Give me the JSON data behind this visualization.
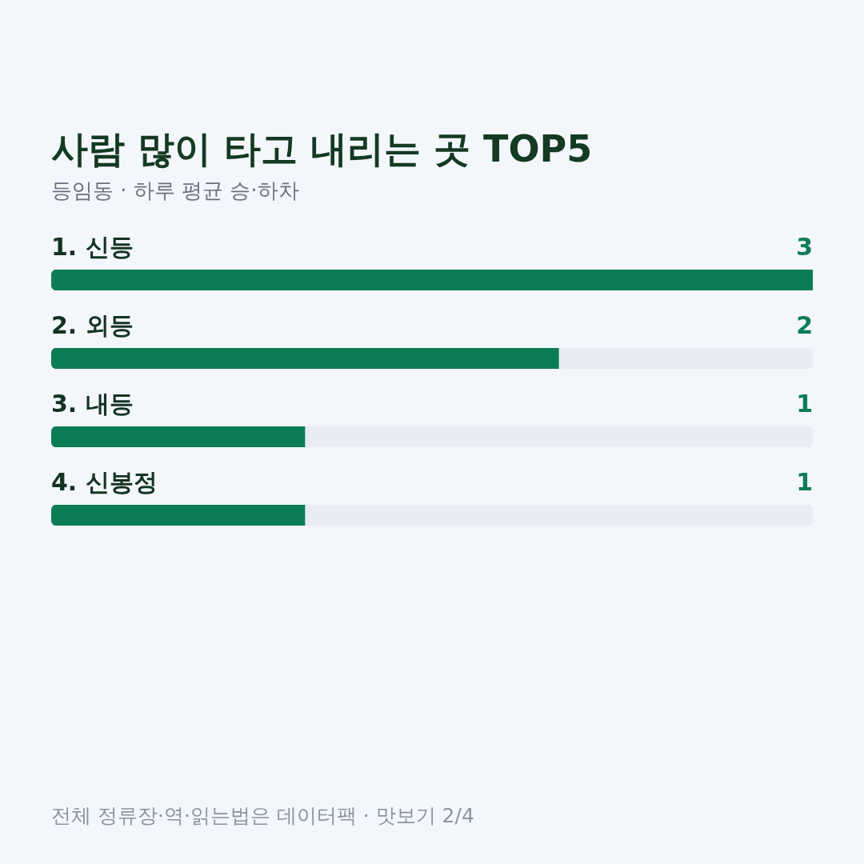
{
  "chart_data": {
    "type": "bar",
    "orientation": "horizontal",
    "title": "사람 많이 타고 내리는 곳 TOP5",
    "subtitle": "등임동 · 하루 평균 승·하차",
    "categories": [
      "1. 신등",
      "2. 외등",
      "3. 내등",
      "4. 신봉정"
    ],
    "values": [
      3,
      2,
      1,
      1
    ],
    "color": "#0b7d55",
    "xlim": [
      0,
      3
    ],
    "data_labels": true,
    "annotations": [
      "전체 정류장·역·읽는법은 데이터팩 · 맛보기 2/4"
    ]
  }
}
